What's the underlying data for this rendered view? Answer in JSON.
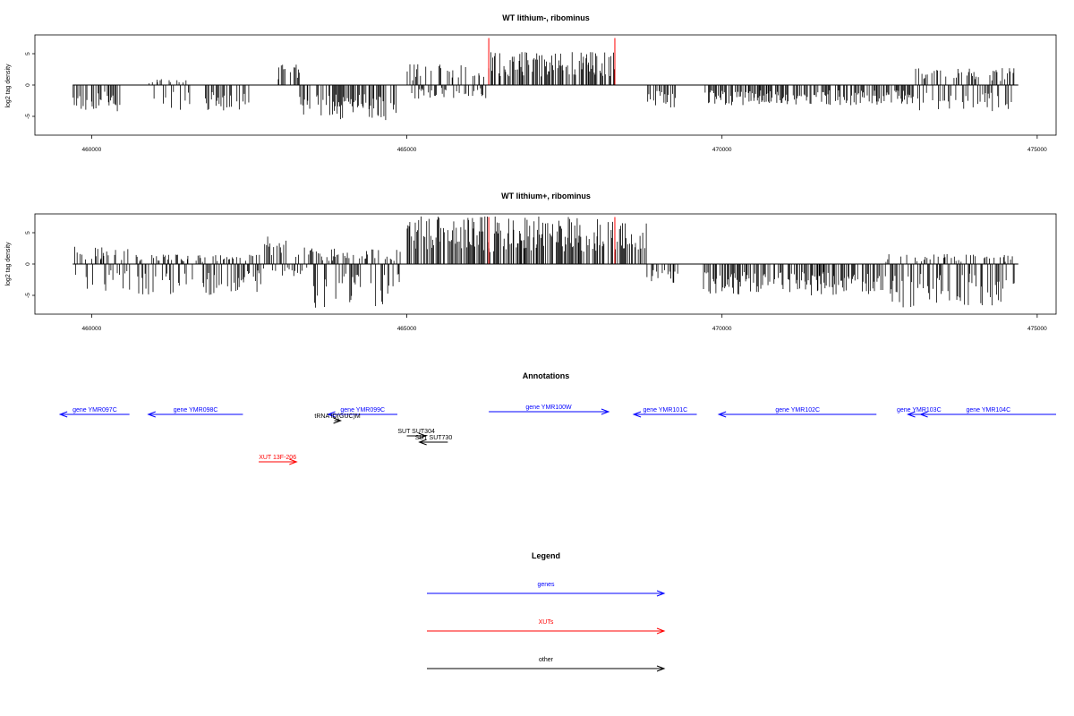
{
  "chart_data": [
    {
      "type": "bar",
      "title": "WT lithium-, ribominus",
      "xlabel": "",
      "ylabel": "log2 tag density",
      "xlim": [
        459100,
        475300
      ],
      "ylim": [
        -8,
        8
      ],
      "x_ticks": [
        "460000",
        "465000",
        "470000",
        "475000"
      ],
      "y_ticks": [
        "5",
        "0",
        "-5"
      ],
      "series_color": "#000000",
      "baseline": [
        459700,
        474700
      ],
      "regions": [
        {
          "start": 459700,
          "end": 460450,
          "min": -4.2,
          "max": 0
        },
        {
          "start": 460900,
          "end": 461550,
          "min": -4.0,
          "max": 1.0
        },
        {
          "start": 461800,
          "end": 462500,
          "min": -4.2,
          "max": 0
        },
        {
          "start": 462950,
          "end": 463300,
          "min": 0,
          "max": 3.3
        },
        {
          "start": 463300,
          "end": 464850,
          "min": -5.6,
          "max": 0
        },
        {
          "start": 465000,
          "end": 466250,
          "min": -2.2,
          "max": 3.6
        },
        {
          "start": 466300,
          "end": 468300,
          "min": 0,
          "max": 5.4
        },
        {
          "start": 468800,
          "end": 469300,
          "min": -3.8,
          "max": 0
        },
        {
          "start": 469700,
          "end": 473000,
          "min": -3.3,
          "max": 0
        },
        {
          "start": 473000,
          "end": 474650,
          "min": -4.3,
          "max": 2.7
        }
      ],
      "highlights": [
        {
          "x": 466300,
          "value": 7.5,
          "color": "#ff0000"
        },
        {
          "x": 468300,
          "value": 7.5,
          "color": "#ff0000"
        }
      ]
    },
    {
      "type": "bar",
      "title": "WT lithium+, ribominus",
      "xlabel": "",
      "ylabel": "log2 tag density",
      "xlim": [
        459100,
        475300
      ],
      "ylim": [
        -8,
        8
      ],
      "x_ticks": [
        "460000",
        "465000",
        "470000",
        "475000"
      ],
      "y_ticks": [
        "5",
        "0",
        "-5"
      ],
      "series_color": "#000000",
      "baseline": [
        459700,
        474700
      ],
      "regions": [
        {
          "start": 459700,
          "end": 460600,
          "min": -4.5,
          "max": 2.8
        },
        {
          "start": 460700,
          "end": 462700,
          "min": -5.0,
          "max": 1.5
        },
        {
          "start": 462700,
          "end": 463450,
          "min": -2.0,
          "max": 4.5
        },
        {
          "start": 463450,
          "end": 464900,
          "min": -7.0,
          "max": 2.5
        },
        {
          "start": 465000,
          "end": 468800,
          "min": 0,
          "max": 7.6
        },
        {
          "start": 468800,
          "end": 469300,
          "min": -3.0,
          "max": 0
        },
        {
          "start": 469700,
          "end": 472600,
          "min": -5.0,
          "max": 0
        },
        {
          "start": 472600,
          "end": 474700,
          "min": -7.0,
          "max": 1.6
        }
      ],
      "highlights": [
        {
          "x": 466300,
          "value": 7.5,
          "color": "#ff0000"
        },
        {
          "x": 468300,
          "value": 7.5,
          "color": "#ff0000"
        }
      ]
    }
  ],
  "annotations": {
    "title": "Annotations",
    "items": [
      {
        "label": "gene YMR097C",
        "color": "#0000ff",
        "start": 460600,
        "end": 459500,
        "row": 0
      },
      {
        "label": "gene YMR098C",
        "color": "#0000ff",
        "start": 462400,
        "end": 460900,
        "row": 0
      },
      {
        "label": "gene YMR099C",
        "color": "#0000ff",
        "start": 464850,
        "end": 463750,
        "row": 0
      },
      {
        "label": "gene YMR100W",
        "color": "#0000ff",
        "start": 466300,
        "end": 468200,
        "row": -0.3
      },
      {
        "label": "gene YMR101C",
        "color": "#0000ff",
        "start": 469600,
        "end": 468600,
        "row": 0
      },
      {
        "label": "gene YMR102C",
        "color": "#0000ff",
        "start": 472450,
        "end": 469950,
        "row": 0
      },
      {
        "label": "gene YMR103C",
        "color": "#0000ff",
        "start": 473300,
        "end": 472950,
        "row": 0
      },
      {
        "label": "gene YMR104C",
        "color": "#0000ff",
        "start": 475300,
        "end": 473150,
        "row": 0
      },
      {
        "label": "tRNA tD(GUC)M",
        "color": "#000000",
        "start": 463850,
        "end": 463950,
        "row": 0.7
      },
      {
        "label": "SUT SUT304",
        "color": "#000000",
        "start": 465000,
        "end": 465300,
        "row": 2.4
      },
      {
        "label": "SUT SUT730",
        "color": "#000000",
        "start": 465650,
        "end": 465200,
        "row": 3.1
      },
      {
        "label": "XUT 13F-206",
        "color": "#ff0000",
        "start": 462650,
        "end": 463250,
        "row": 5.3
      }
    ]
  },
  "legend": {
    "title": "Legend",
    "items": [
      {
        "label": "genes",
        "color": "#0000ff"
      },
      {
        "label": "XUTs",
        "color": "#ff0000"
      },
      {
        "label": "other",
        "color": "#000000"
      }
    ]
  }
}
